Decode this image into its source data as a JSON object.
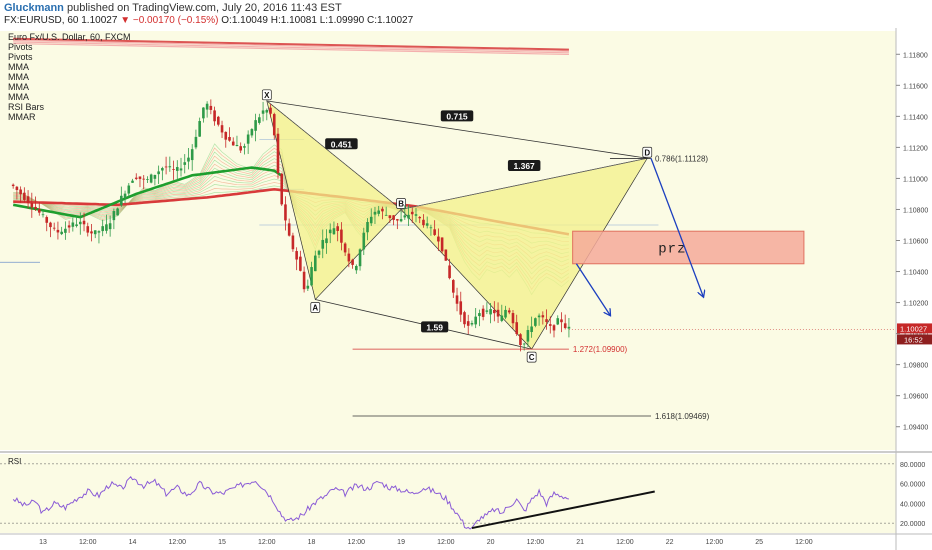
{
  "header": {
    "author": "Gluckmann",
    "published_text": "published on TradingView.com, July 20, 2016 11:43 EST",
    "symbol_tf": "FX:EURUSD, 60",
    "last": "1.10027",
    "change": "−0.00170 (−0.15%)",
    "o": "O:1.10049",
    "h": "H:1.10081",
    "l": "L:1.09990",
    "c": "C:1.10027"
  },
  "legend": {
    "title": "Euro Fx/U.S. Dollar, 60, FXCM",
    "items": [
      "Pivots",
      "Pivots",
      "MMA",
      "MMA",
      "MMA",
      "MMA",
      "RSI Bars",
      "MMAR"
    ]
  },
  "colors": {
    "background": "#fbfbe4",
    "bull": "#2e9a48",
    "bear": "#c62828",
    "pattern_fill": "#f3f08a",
    "prz_fill": "#f4a99a",
    "arrow": "#1c3fbf",
    "rsi_line": "#8a5bd6"
  },
  "chart_data": {
    "type": "candlestick",
    "symbol": "EURUSD",
    "price_axis": {
      "range": [
        1.0925,
        1.1195
      ],
      "ticks": [
        "1.11800",
        "1.11600",
        "1.11400",
        "1.11200",
        "1.11000",
        "1.10800",
        "1.10600",
        "1.10400",
        "1.10200",
        "1.10000",
        "1.09800",
        "1.09600",
        "1.09400"
      ]
    },
    "time_axis": {
      "ticks": [
        {
          "label": "13",
          "t": 0
        },
        {
          "label": "12:00",
          "t": 12
        },
        {
          "label": "14",
          "t": 24
        },
        {
          "label": "12:00",
          "t": 36
        },
        {
          "label": "15",
          "t": 48
        },
        {
          "label": "12:00",
          "t": 60
        },
        {
          "label": "18",
          "t": 72
        },
        {
          "label": "12:00",
          "t": 84
        },
        {
          "label": "19",
          "t": 96
        },
        {
          "label": "12:00",
          "t": 108
        },
        {
          "label": "20",
          "t": 120
        },
        {
          "label": "12:00",
          "t": 132
        },
        {
          "label": "21",
          "t": 144
        },
        {
          "label": "12:00",
          "t": 156
        },
        {
          "label": "22",
          "t": 168
        },
        {
          "label": "12:00",
          "t": 180
        },
        {
          "label": "25",
          "t": 192
        },
        {
          "label": "12:00",
          "t": 204
        }
      ]
    },
    "price_anchors": [
      [
        -8,
        1.1096
      ],
      [
        -2,
        1.1082
      ],
      [
        4,
        1.1065
      ],
      [
        10,
        1.1072
      ],
      [
        14,
        1.1064
      ],
      [
        18,
        1.107
      ],
      [
        22,
        1.109
      ],
      [
        25,
        1.1102
      ],
      [
        28,
        1.1098
      ],
      [
        33,
        1.1108
      ],
      [
        36,
        1.1104
      ],
      [
        40,
        1.1115
      ],
      [
        44,
        1.115
      ],
      [
        46,
        1.114
      ],
      [
        50,
        1.1125
      ],
      [
        54,
        1.1118
      ],
      [
        57,
        1.1135
      ],
      [
        60,
        1.1145
      ],
      [
        62,
        1.114
      ],
      [
        64,
        1.109
      ],
      [
        66,
        1.1065
      ],
      [
        69,
        1.1045
      ],
      [
        71,
        1.1025
      ],
      [
        73,
        1.1048
      ],
      [
        76,
        1.1062
      ],
      [
        79,
        1.107
      ],
      [
        82,
        1.105
      ],
      [
        84,
        1.104
      ],
      [
        86,
        1.106
      ],
      [
        88,
        1.1075
      ],
      [
        90,
        1.108
      ],
      [
        93,
        1.1076
      ],
      [
        96,
        1.1072
      ],
      [
        99,
        1.1078
      ],
      [
        101,
        1.1075
      ],
      [
        104,
        1.1068
      ],
      [
        107,
        1.106
      ],
      [
        109,
        1.104
      ],
      [
        111,
        1.1022
      ],
      [
        113,
        1.101
      ],
      [
        115,
        1.1002
      ],
      [
        117,
        1.1015
      ],
      [
        119,
        1.1012
      ],
      [
        121,
        1.1016
      ],
      [
        123,
        1.1008
      ],
      [
        125,
        1.1018
      ],
      [
        128,
        1.0998
      ],
      [
        129,
        1.099
      ],
      [
        131,
        1.1004
      ],
      [
        133,
        1.1012
      ],
      [
        135,
        1.1008
      ],
      [
        137,
        1.1002
      ],
      [
        139,
        1.101
      ],
      [
        141,
        1.1003
      ]
    ],
    "mma_fast_anchors": [
      [
        -8,
        1.1083
      ],
      [
        10,
        1.1075
      ],
      [
        25,
        1.109
      ],
      [
        40,
        1.1102
      ],
      [
        56,
        1.1107
      ],
      [
        62,
        1.1105
      ],
      [
        70,
        1.1092
      ],
      [
        85,
        1.1084
      ],
      [
        100,
        1.1078
      ],
      [
        115,
        1.1066
      ],
      [
        130,
        1.106
      ],
      [
        141,
        1.1058
      ]
    ],
    "mma_slow_anchors": [
      [
        -8,
        1.1085
      ],
      [
        20,
        1.1083
      ],
      [
        45,
        1.1088
      ],
      [
        62,
        1.1093
      ],
      [
        80,
        1.1088
      ],
      [
        100,
        1.1082
      ],
      [
        120,
        1.1073
      ],
      [
        141,
        1.1064
      ]
    ],
    "mmar_line": [
      [
        -8,
        1.119
      ],
      [
        141,
        1.1183
      ]
    ],
    "harmonic_pattern": {
      "points": [
        {
          "label": "X",
          "t": 60,
          "price": 1.115
        },
        {
          "label": "A",
          "t": 73,
          "price": 1.1022
        },
        {
          "label": "B",
          "t": 96,
          "price": 1.108
        },
        {
          "label": "C",
          "t": 131,
          "price": 1.099
        },
        {
          "label": "D",
          "t": 162,
          "price": 1.1113
        }
      ],
      "ratios": [
        {
          "label": "0.715",
          "t": 111,
          "price": 1.114
        },
        {
          "label": "0.451",
          "t": 80,
          "price": 1.1122
        },
        {
          "label": "1.367",
          "t": 129,
          "price": 1.1108
        },
        {
          "label": "1.59",
          "t": 105,
          "price": 1.1004
        }
      ]
    },
    "fib_levels": [
      {
        "label": "0.786(1.11128)",
        "price": 1.11128,
        "t_start": 152,
        "t_end": 163,
        "color": "#333333"
      },
      {
        "label": "1.272(1.09900)",
        "price": 1.099,
        "t_start": 83,
        "t_end": 141,
        "color": "#d32f2f"
      },
      {
        "label": "1.618(1.09469)",
        "price": 1.09469,
        "t_start": 83,
        "t_end": 163,
        "color": "#333333"
      }
    ],
    "prz_zone": {
      "label": "prz",
      "t_start": 142,
      "t_end": 204,
      "price_top": 1.1066,
      "price_bottom": 1.1045
    },
    "arrows": [
      {
        "from": [
          143,
          1.1045
        ],
        "to": [
          152,
          1.1012
        ]
      },
      {
        "from": [
          163,
          1.1113
        ],
        "to": [
          177,
          1.1024
        ]
      }
    ],
    "last_price": {
      "value": "1.10027",
      "time_left": "16:52"
    },
    "rsi": {
      "ticks": [
        "80.0000",
        "60.0000",
        "40.0000",
        "20.0000"
      ],
      "range": [
        10,
        90
      ],
      "levels": [
        80,
        20
      ],
      "anchors": [
        [
          -8,
          45
        ],
        [
          -5,
          38
        ],
        [
          -2,
          42
        ],
        [
          0,
          30
        ],
        [
          3,
          40
        ],
        [
          6,
          36
        ],
        [
          9,
          45
        ],
        [
          12,
          52
        ],
        [
          15,
          48
        ],
        [
          18,
          60
        ],
        [
          21,
          55
        ],
        [
          24,
          66
        ],
        [
          27,
          58
        ],
        [
          30,
          62
        ],
        [
          33,
          50
        ],
        [
          36,
          56
        ],
        [
          39,
          48
        ],
        [
          42,
          60
        ],
        [
          45,
          52
        ],
        [
          48,
          50
        ],
        [
          51,
          55
        ],
        [
          54,
          60
        ],
        [
          57,
          64
        ],
        [
          60,
          52
        ],
        [
          62,
          42
        ],
        [
          64,
          28
        ],
        [
          66,
          22
        ],
        [
          68,
          25
        ],
        [
          70,
          30
        ],
        [
          72,
          38
        ],
        [
          74,
          44
        ],
        [
          76,
          48
        ],
        [
          78,
          55
        ],
        [
          81,
          50
        ],
        [
          84,
          58
        ],
        [
          87,
          55
        ],
        [
          90,
          62
        ],
        [
          93,
          56
        ],
        [
          96,
          54
        ],
        [
          99,
          50
        ],
        [
          102,
          56
        ],
        [
          105,
          52
        ],
        [
          108,
          45
        ],
        [
          111,
          30
        ],
        [
          113,
          18
        ],
        [
          115,
          14
        ],
        [
          117,
          25
        ],
        [
          119,
          28
        ],
        [
          121,
          34
        ],
        [
          123,
          30
        ],
        [
          125,
          38
        ],
        [
          127,
          44
        ],
        [
          129,
          32
        ],
        [
          131,
          44
        ],
        [
          133,
          52
        ],
        [
          135,
          40
        ],
        [
          137,
          50
        ],
        [
          139,
          48
        ],
        [
          141,
          45
        ]
      ],
      "trendline": [
        [
          115,
          15
        ],
        [
          164,
          52
        ]
      ]
    }
  }
}
